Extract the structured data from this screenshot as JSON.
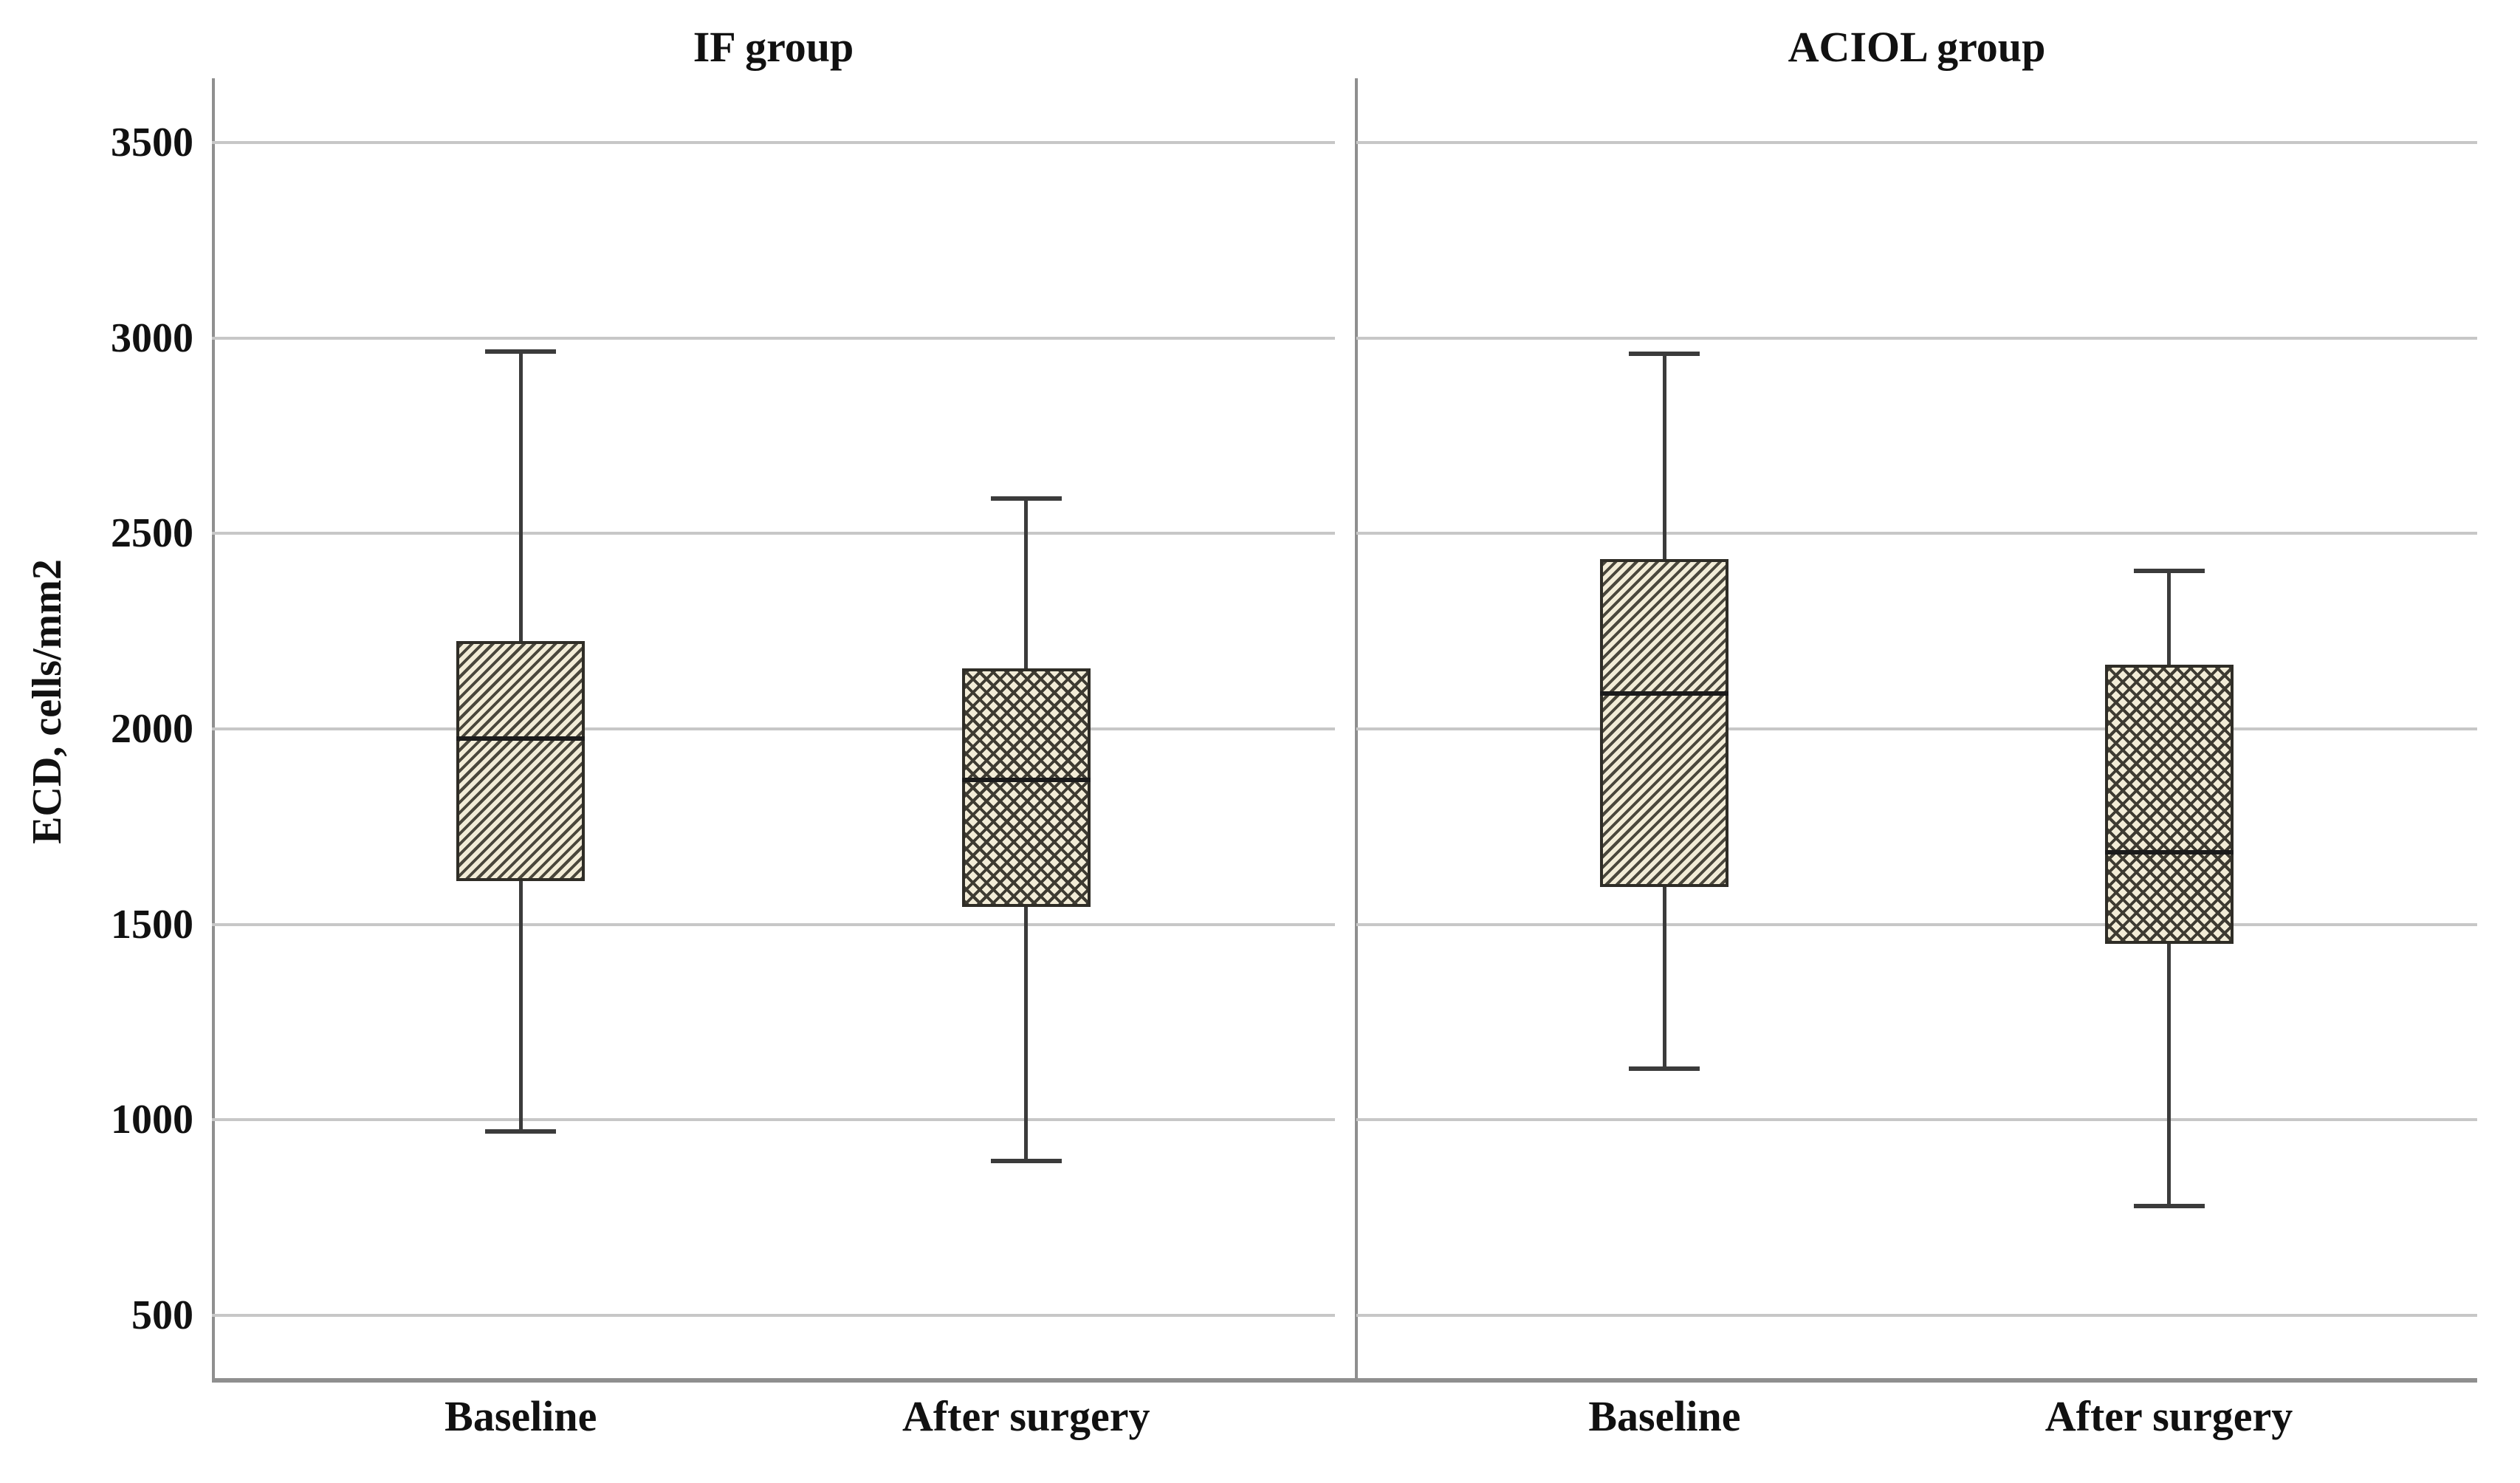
{
  "figure": {
    "kind": "grouped-boxplot-figure"
  },
  "chart_data": {
    "type": "boxplot",
    "ylabel": "ECD, cells/mm2",
    "xlabel": "",
    "ylim": [
      335,
      3665
    ],
    "y_ticks": [
      3500,
      3000,
      2500,
      2000,
      1500,
      1000,
      500
    ],
    "grid": "horizontal",
    "legend": "none",
    "style": {
      "box_fill": "#f2ecd7",
      "hatch_line": "#4a473c",
      "crosshatch_line": "#3e3b32",
      "box_border": "#2f2d27",
      "median_color": "#1b1b1b",
      "whisker_color": "#3b3b3b",
      "gridline_color": "#c7c7c7",
      "axis_color": "#8f8f8f",
      "text_color": "#111111",
      "background": "#ffffff"
    },
    "panels": [
      {
        "title": "IF group",
        "boxes": [
          {
            "label": "Baseline",
            "hatch": "diagonal",
            "whisker_low": 970,
            "q1": 1610,
            "median": 1975,
            "q3": 2225,
            "whisker_high": 2965
          },
          {
            "label": "After surgery",
            "hatch": "crosshatch",
            "whisker_low": 895,
            "q1": 1545,
            "median": 1870,
            "q3": 2155,
            "whisker_high": 2590
          }
        ]
      },
      {
        "title": "ACIOL group",
        "boxes": [
          {
            "label": "Baseline",
            "hatch": "diagonal",
            "whisker_low": 1130,
            "q1": 1595,
            "median": 2090,
            "q3": 2435,
            "whisker_high": 2960
          },
          {
            "label": "After surgery",
            "hatch": "crosshatch",
            "whisker_low": 780,
            "q1": 1450,
            "median": 1685,
            "q3": 2165,
            "whisker_high": 2405
          }
        ]
      }
    ]
  }
}
